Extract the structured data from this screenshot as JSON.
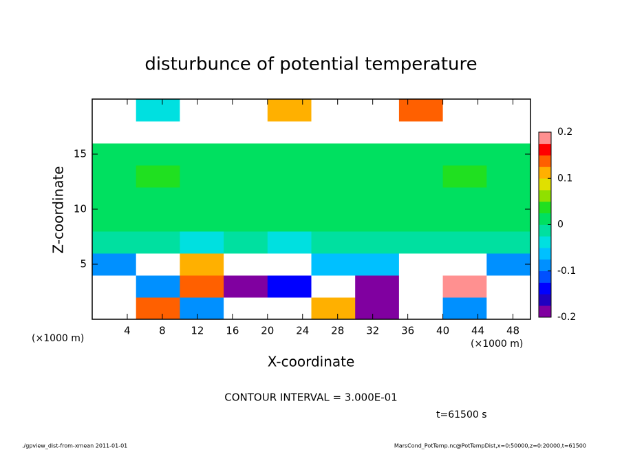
{
  "chart_data": {
    "type": "heatmap",
    "title": "disturbunce of potential temperature",
    "xlabel": "X-coordinate",
    "ylabel": "Z-coordinate",
    "x_unit_left": "(×1000 m)",
    "x_unit_right": "(×1000 m)",
    "contour_note": "CONTOUR INTERVAL = 3.000E-01",
    "time_note": "t=61500 s",
    "footer_left": "./gpview_dist-from-xmean  2011-01-01",
    "footer_right": "MarsCond_PotTemp.nc@PotTempDist,x=0:50000,z=0:20000,t=61500",
    "xlim": [
      0,
      50
    ],
    "ylim": [
      0,
      20
    ],
    "xticks": [
      4,
      8,
      12,
      16,
      20,
      24,
      28,
      32,
      36,
      40,
      44,
      48
    ],
    "yticks": [
      5,
      10,
      15
    ],
    "zlim": [
      -0.2,
      0.2
    ],
    "zticks": [
      0.2,
      0.1,
      0,
      -0.1,
      -0.2
    ],
    "colors": [
      "#8000a0",
      "#2000c0",
      "#0000ff",
      "#0050ff",
      "#0090ff",
      "#00c0ff",
      "#00e0e0",
      "#00e0a0",
      "#00e060",
      "#20e020",
      "#90e000",
      "#e0e000",
      "#ffb000",
      "#ff6000",
      "#ff0000",
      "#ff9090"
    ],
    "over_color": "#ffffff",
    "under_color": "#ffffff",
    "values": [
      [
        0.25,
        0.15,
        -0.1,
        -0.22,
        0.25,
        0.1,
        -0.2,
        0.25,
        -0.1,
        0.25
      ],
      [
        0.25,
        -0.1,
        0.15,
        -0.2,
        -0.15,
        0.25,
        -0.2,
        0.25,
        0.2,
        0.25
      ],
      [
        -0.08,
        0.25,
        0.1,
        0.25,
        0.25,
        -0.07,
        -0.07,
        0.25,
        0.25,
        -0.08
      ],
      [
        -0.02,
        -0.02,
        -0.03,
        -0.02,
        -0.03,
        -0.02,
        -0.02,
        -0.01,
        -0.02,
        -0.02
      ],
      [
        0,
        0,
        0,
        0,
        0,
        0.01,
        0,
        0.02,
        0,
        0
      ],
      [
        0,
        0,
        0,
        0,
        0,
        0,
        0,
        0.02,
        0.02,
        0
      ],
      [
        0,
        0.03,
        0,
        0,
        0,
        0,
        0,
        0.02,
        0.03,
        0
      ],
      [
        0.01,
        0,
        0,
        0,
        0,
        0,
        0,
        0.01,
        0.02,
        0
      ],
      [
        0.25,
        0.25,
        0.25,
        0.25,
        0.25,
        0.25,
        0.25,
        0.25,
        0.25,
        0.25
      ],
      [
        0.25,
        -0.05,
        0.25,
        0.25,
        0.1,
        0.25,
        0.25,
        0.15,
        0.25,
        0.25
      ]
    ]
  }
}
